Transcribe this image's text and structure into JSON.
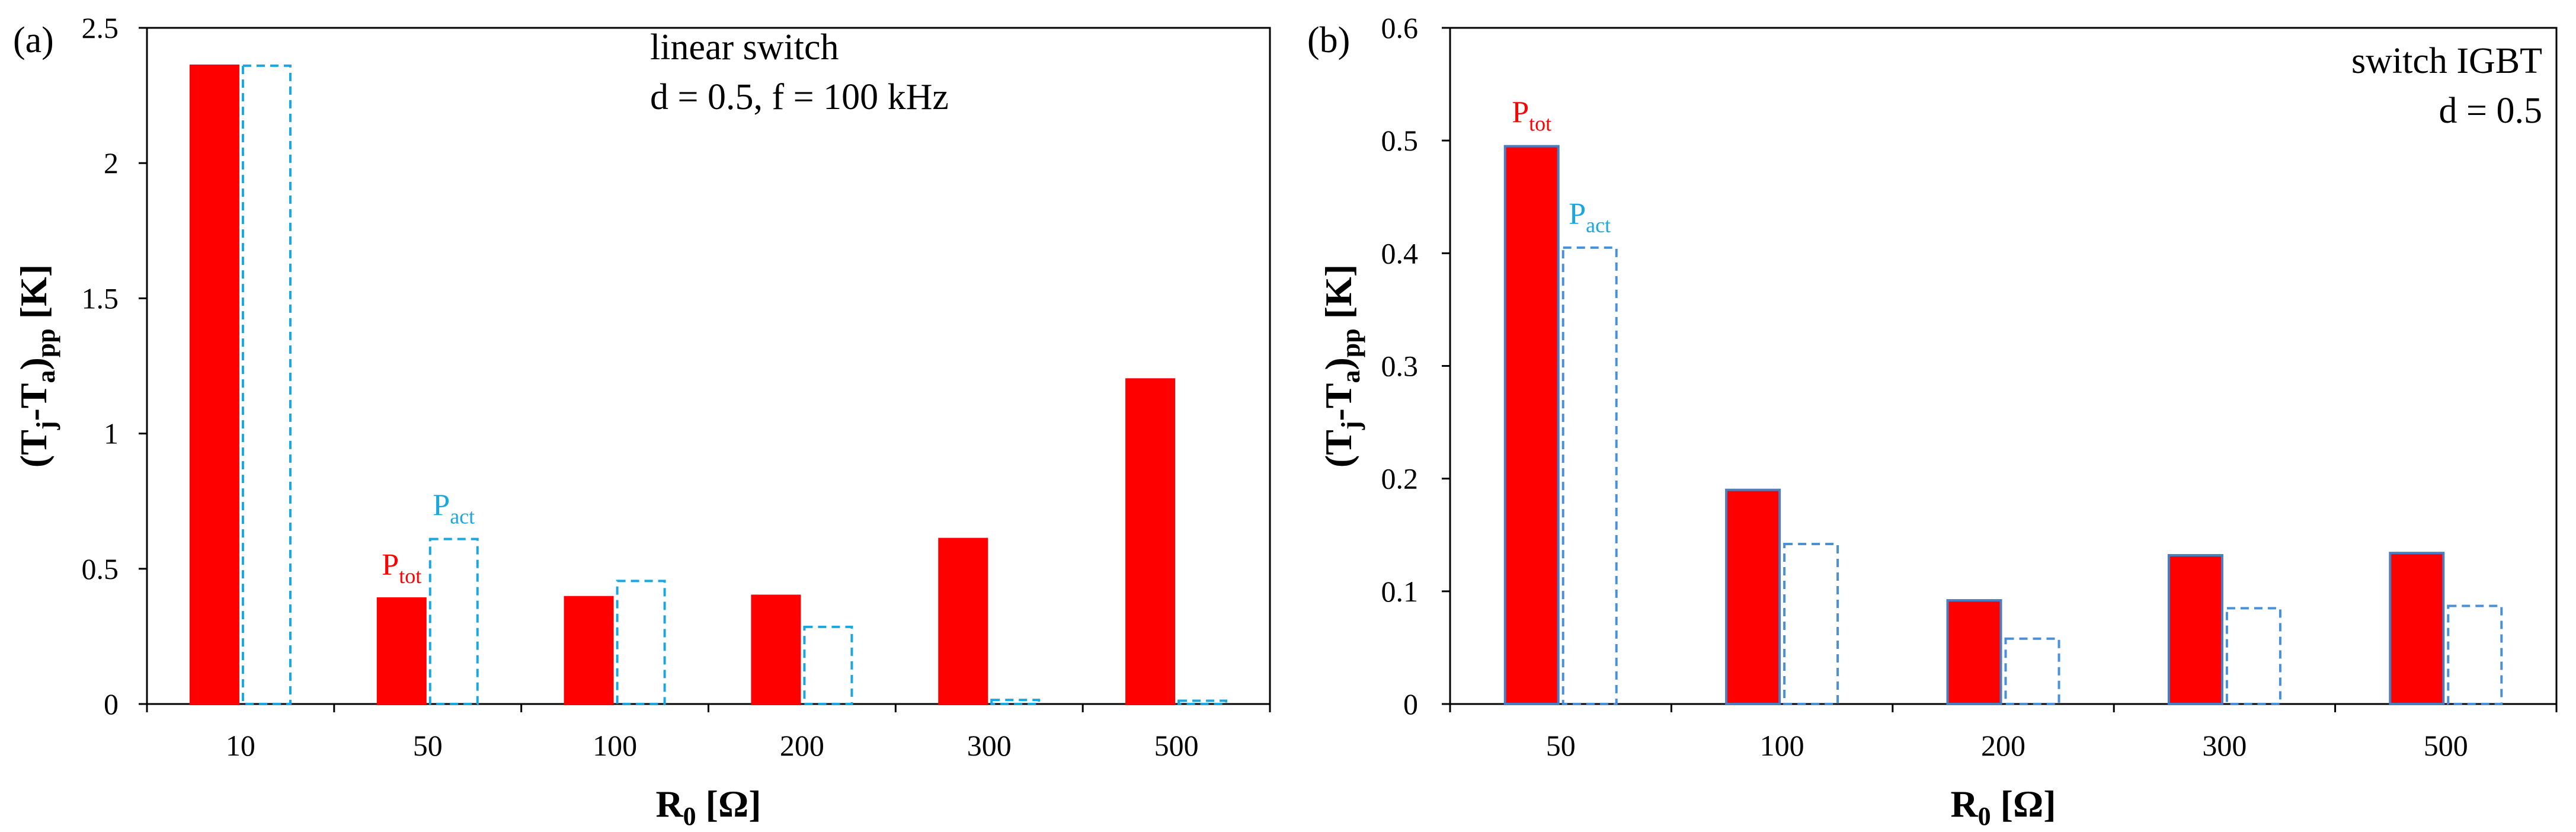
{
  "chart_data": [
    {
      "type": "bar",
      "panel_label": "(a)",
      "annotation_lines": [
        "linear switch",
        "d = 0.5, f = 100 kHz"
      ],
      "xlabel": {
        "main": "R",
        "sub": "0",
        "rest": " [Ω]"
      },
      "ylabel": {
        "open": "(T",
        "sub1": "j",
        "mid": "-T",
        "sub2": "a",
        "close": ")",
        "sub3": "pp",
        "rest": " [K]"
      },
      "categories": [
        "10",
        "50",
        "100",
        "200",
        "300",
        "500"
      ],
      "ylim": [
        0,
        2.5
      ],
      "yticks": [
        "0",
        "0.5",
        "1",
        "1.5",
        "2",
        "2.5"
      ],
      "ytick_values": [
        0,
        0.5,
        1,
        1.5,
        2,
        2.5
      ],
      "series": [
        {
          "values": [
            2.36,
            0.39,
            0.395,
            0.4,
            0.61,
            1.2
          ],
          "fill": "#ff0000",
          "stroke": "#ff0000",
          "style": "solid"
        },
        {
          "values": [
            2.36,
            0.61,
            0.455,
            0.285,
            0.015,
            0.012
          ],
          "fill": "none",
          "stroke": "#1aa7e0",
          "style": "dashed"
        }
      ],
      "labels": [
        {
          "text": "P",
          "sub": "tot",
          "color": "#ff0000",
          "series": 0,
          "category": 1
        },
        {
          "text": "P",
          "sub": "act",
          "color": "#1aa7e0",
          "series": 1,
          "category": 1
        }
      ],
      "grid": false,
      "legend": "none"
    },
    {
      "type": "bar",
      "panel_label": "(b)",
      "annotation_lines": [
        "switch IGBT",
        "d = 0.5"
      ],
      "xlabel": {
        "main": "R",
        "sub": "0",
        "rest": " [Ω]"
      },
      "ylabel": {
        "open": "(T",
        "sub1": "j",
        "mid": "-T",
        "sub2": "a",
        "close": ")",
        "sub3": "pp",
        "rest": " [K]"
      },
      "categories": [
        "50",
        "100",
        "200",
        "300",
        "500"
      ],
      "ylim": [
        0,
        0.6
      ],
      "yticks": [
        "0",
        "0.1",
        "0.2",
        "0.3",
        "0.4",
        "0.5",
        "0.6"
      ],
      "ytick_values": [
        0,
        0.1,
        0.2,
        0.3,
        0.4,
        0.5,
        0.6
      ],
      "series": [
        {
          "values": [
            0.495,
            0.19,
            0.092,
            0.132,
            0.134
          ],
          "fill": "#ff0000",
          "stroke": "#4a7ec2",
          "style": "solid"
        },
        {
          "values": [
            0.405,
            0.142,
            0.058,
            0.085,
            0.087
          ],
          "fill": "none",
          "stroke": "#4a90d9",
          "style": "dashed"
        }
      ],
      "labels": [
        {
          "text": "P",
          "sub": "tot",
          "color": "#ff0000",
          "series": 0,
          "category": 0
        },
        {
          "text": "P",
          "sub": "act",
          "color": "#1aa7e0",
          "series": 1,
          "category": 0
        }
      ],
      "grid": false,
      "legend": "none"
    }
  ]
}
